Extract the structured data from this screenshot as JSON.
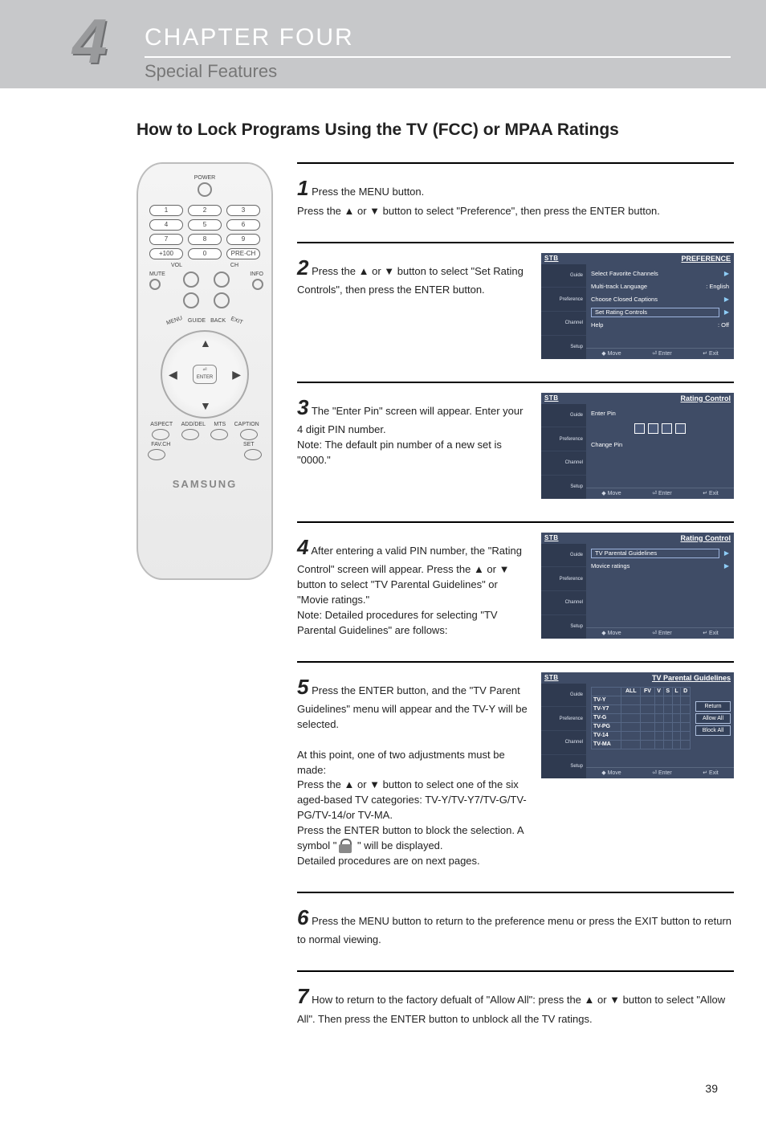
{
  "header": {
    "chapter_number": "4",
    "chapter_title": "CHAPTER FOUR",
    "sub_title": "Special Features"
  },
  "section_title": "How to Lock Programs Using the TV (FCC) or MPAA Ratings",
  "remote": {
    "power_label": "POWER",
    "number_rows": [
      [
        "1",
        "2",
        "3"
      ],
      [
        "4",
        "5",
        "6"
      ],
      [
        "7",
        "8",
        "9"
      ],
      [
        "+100",
        "0",
        "PRE-CH"
      ]
    ],
    "vol_label": "VOL",
    "ch_label": "CH",
    "mute_label": "MUTE",
    "info_label": "INFO",
    "guide_label": "GUIDE",
    "back_label": "BACK",
    "menu_label": "MENU",
    "exit_label": "EXIT",
    "enter_label": "ENTER",
    "row_a_labels": [
      "ASPECT",
      "ADD/DEL",
      "MTS",
      "CAPTION"
    ],
    "row_b_labels": [
      "FAV.CH",
      "",
      "",
      "SET"
    ],
    "brand": "SAMSUNG"
  },
  "osd_common": {
    "stb": "STB",
    "side_items": [
      "Guide",
      "Preference",
      "Channel",
      "Setup"
    ],
    "foot": {
      "move": "Move",
      "enter": "Enter",
      "exit": "Exit"
    }
  },
  "steps": [
    {
      "num": "1",
      "text": "Press the MENU button.\nPress the ▲ or ▼ button to select \"Preference\", then press the ENTER button.",
      "osd": null
    },
    {
      "num": "2",
      "text": "Press the ▲ or ▼ button to select \"Set Rating Controls\", then press the ENTER button.",
      "osd": {
        "banner": "PREFERENCE",
        "rows": [
          {
            "label": "Select Favorite Channels",
            "arrow": true
          },
          {
            "label": "Multi-track Language",
            "right": ": English"
          },
          {
            "label": "Choose Closed Captions",
            "arrow": true
          },
          {
            "label": "Set Rating Controls",
            "arrow": true,
            "boxed": true
          },
          {
            "label": "Help",
            "right": ": Off"
          }
        ]
      }
    },
    {
      "num": "3",
      "text": "The \"Enter Pin\" screen will appear. Enter your 4 digit PIN number.\nNote: The default pin number of a new set is \"0000.\"",
      "osd": {
        "banner": "Rating Control",
        "enter_pin_label": "Enter Pin",
        "change_pin_label": "Change Pin"
      }
    },
    {
      "num": "4",
      "text": "After entering a valid PIN number, the \"Rating Control\" screen will appear. Press the ▲ or ▼ button to select \"TV Parental Guidelines\" or \"Movie ratings.\"\nNote: Detailed procedures for selecting \"TV Parental Guidelines\" are follows:",
      "osd": {
        "banner": "Rating Control",
        "rows": [
          {
            "label": "TV Parental Guidelines",
            "arrow": true,
            "boxed": true
          },
          {
            "label": "Movice ratings",
            "arrow": true
          }
        ]
      }
    },
    {
      "num": "5",
      "text": "Press the ENTER button, and the \"TV Parent Guidelines\" menu will appear and the TV-Y will be selected.\n\nAt this point, one of two adjustments must be made:\nPress the ▲ or ▼ button to select one of the six aged-based TV categories: TV-Y/TV-Y7/TV-G/TV-PG/TV-14/or TV-MA.\nPress the ENTER button to block the selection. A symbol \"🔒\" will be displayed.\nDetailed procedures are on next pages.",
      "osd": {
        "banner": "TV Parental Guidelines",
        "pg_cols": [
          "ALL",
          "FV",
          "V",
          "S",
          "L",
          "D"
        ],
        "pg_rows": [
          "TV-Y",
          "TV-Y7",
          "TV-G",
          "TV-PG",
          "TV-14",
          "TV-MA"
        ],
        "buttons": [
          "Return",
          "Allow All",
          "Block All"
        ]
      }
    },
    {
      "num": "6",
      "text": "Press the MENU button to return to the preference menu or press the EXIT button to return to normal viewing.",
      "osd": null
    },
    {
      "num": "7",
      "text": "How to return to the factory defualt of \"Allow All\": press the ▲ or ▼ button to select \"Allow All\". Then press the ENTER button to unblock all the TV ratings.",
      "osd": null
    }
  ],
  "page_number": "39",
  "colors": {
    "band_bg": "#c7c8ca",
    "osd_bg": "#3f4c66",
    "osd_side": "#2f3a50",
    "accent_arrow": "#8ecdf7"
  }
}
